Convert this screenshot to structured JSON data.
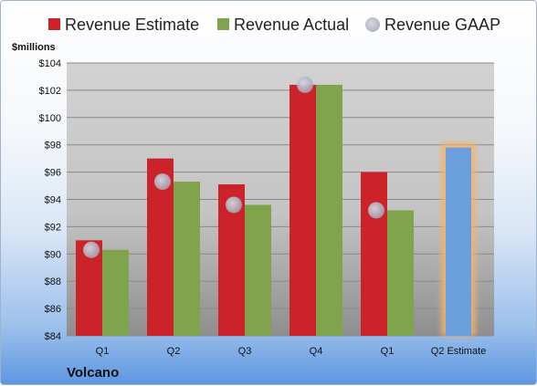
{
  "chart_data": {
    "type": "bar",
    "ylabel": "$millions",
    "company": "Volcano",
    "ylim": [
      84,
      104
    ],
    "yticks": [
      84,
      86,
      88,
      90,
      92,
      94,
      96,
      98,
      100,
      102,
      104
    ],
    "ytick_labels": [
      "$84",
      "$86",
      "$88",
      "$90",
      "$92",
      "$94",
      "$96",
      "$98",
      "$100",
      "$102",
      "$104"
    ],
    "categories": [
      "Q1",
      "Q2",
      "Q3",
      "Q4",
      "Q1",
      "Q2 Estimate"
    ],
    "legend_position": "top",
    "grid": true,
    "series": [
      {
        "name": "Revenue Estimate",
        "color": "#cc2229",
        "values": [
          91.0,
          97.0,
          95.1,
          102.4,
          96.0,
          null
        ]
      },
      {
        "name": "Revenue Actual",
        "color": "#7fa44c",
        "values": [
          90.3,
          95.3,
          93.6,
          102.4,
          93.2,
          null
        ]
      },
      {
        "name": "Revenue GAAP",
        "color": "#b8bccb",
        "values": [
          90.3,
          95.3,
          93.6,
          102.4,
          93.2,
          null
        ]
      }
    ],
    "estimate_bar": {
      "category": "Q2 Estimate",
      "value": 97.8,
      "color": "#6a9edc",
      "glow": "#f3b36a"
    }
  }
}
